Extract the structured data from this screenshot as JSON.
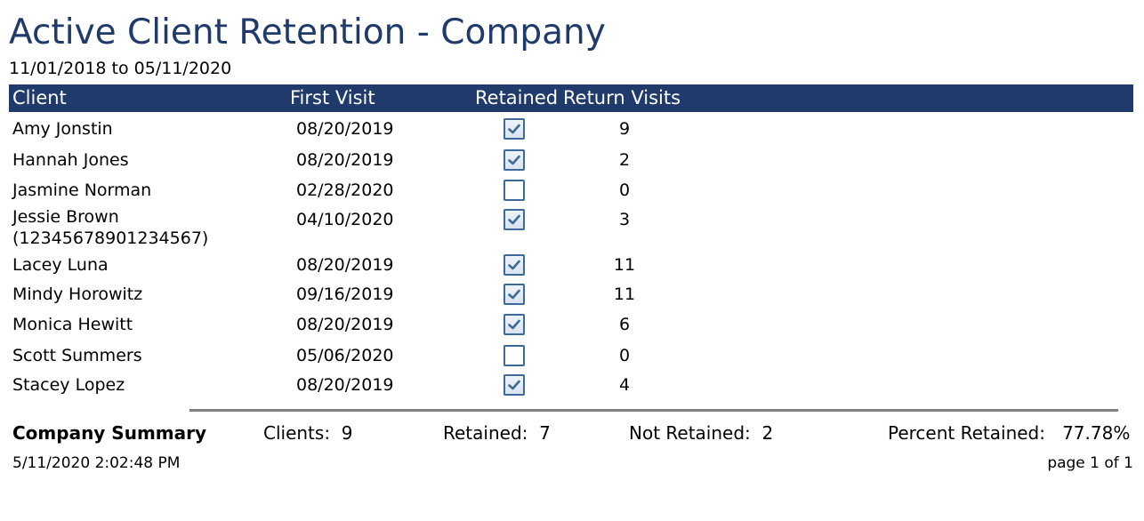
{
  "report": {
    "title": "Active Client Retention - Company",
    "date_range": "11/01/2018 to 05/11/2020"
  },
  "table": {
    "headers": {
      "client": "Client",
      "first_visit": "First Visit",
      "retained": "Retained",
      "return_visits": "Return Visits"
    },
    "rows": [
      {
        "client": "Amy Jonstin",
        "first_visit": "08/20/2019",
        "retained": true,
        "return_visits": "9"
      },
      {
        "client": "Hannah Jones",
        "first_visit": "08/20/2019",
        "retained": true,
        "return_visits": "2"
      },
      {
        "client": "Jasmine Norman",
        "first_visit": "02/28/2020",
        "retained": false,
        "return_visits": "0"
      },
      {
        "client": "Jessie Brown",
        "client_line2": "(12345678901234567)",
        "first_visit": "04/10/2020",
        "retained": true,
        "return_visits": "3"
      },
      {
        "client": "Lacey Luna",
        "first_visit": "08/20/2019",
        "retained": true,
        "return_visits": "11"
      },
      {
        "client": "Mindy Horowitz",
        "first_visit": "09/16/2019",
        "retained": true,
        "return_visits": "11"
      },
      {
        "client": "Monica Hewitt",
        "first_visit": "08/20/2019",
        "retained": true,
        "return_visits": "6"
      },
      {
        "client": "Scott Summers",
        "first_visit": "05/06/2020",
        "retained": false,
        "return_visits": "0"
      },
      {
        "client": "Stacey Lopez",
        "first_visit": "08/20/2019",
        "retained": true,
        "return_visits": "4"
      }
    ]
  },
  "summary": {
    "title": "Company Summary",
    "clients_label": "Clients:",
    "clients_value": "9",
    "retained_label": "Retained:",
    "retained_value": "7",
    "not_retained_label": "Not Retained:",
    "not_retained_value": "2",
    "percent_label": "Percent Retained:",
    "percent_value": "77.78%"
  },
  "footer": {
    "timestamp": "5/11/2020 2:02:48 PM",
    "page": "page 1 of 1"
  },
  "colors": {
    "header_bg": "#1f3a6b",
    "check_border": "#3c6a9a"
  }
}
